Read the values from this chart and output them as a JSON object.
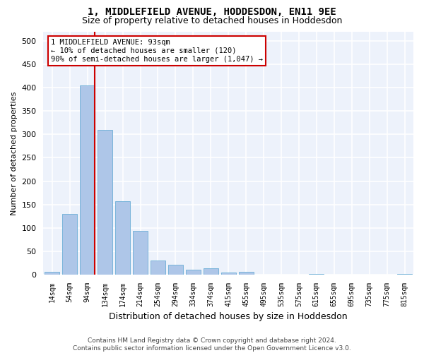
{
  "title": "1, MIDDLEFIELD AVENUE, HODDESDON, EN11 9EE",
  "subtitle": "Size of property relative to detached houses in Hoddesdon",
  "xlabel": "Distribution of detached houses by size in Hoddesdon",
  "ylabel": "Number of detached properties",
  "bar_labels": [
    "14sqm",
    "54sqm",
    "94sqm",
    "134sqm",
    "174sqm",
    "214sqm",
    "254sqm",
    "294sqm",
    "334sqm",
    "374sqm",
    "415sqm",
    "455sqm",
    "495sqm",
    "535sqm",
    "575sqm",
    "615sqm",
    "655sqm",
    "695sqm",
    "735sqm",
    "775sqm",
    "815sqm"
  ],
  "bar_values": [
    5,
    130,
    405,
    310,
    157,
    93,
    30,
    21,
    10,
    13,
    4,
    5,
    0,
    0,
    0,
    1,
    0,
    0,
    0,
    0,
    1
  ],
  "bar_color": "#aec6e8",
  "bar_edge_color": "#6aaed6",
  "vline_x_index": 2,
  "vline_color": "#cc0000",
  "annotation_text": "1 MIDDLEFIELD AVENUE: 93sqm\n← 10% of detached houses are smaller (120)\n90% of semi-detached houses are larger (1,047) →",
  "annotation_box_facecolor": "#ffffff",
  "annotation_box_edgecolor": "#cc0000",
  "ylim": [
    0,
    520
  ],
  "yticks": [
    0,
    50,
    100,
    150,
    200,
    250,
    300,
    350,
    400,
    450,
    500
  ],
  "plot_bg_color": "#edf2fb",
  "fig_bg_color": "#ffffff",
  "grid_color": "#ffffff",
  "title_fontsize": 10,
  "subtitle_fontsize": 9,
  "ylabel_fontsize": 8,
  "xlabel_fontsize": 9,
  "footer_line1": "Contains HM Land Registry data © Crown copyright and database right 2024.",
  "footer_line2": "Contains public sector information licensed under the Open Government Licence v3.0."
}
